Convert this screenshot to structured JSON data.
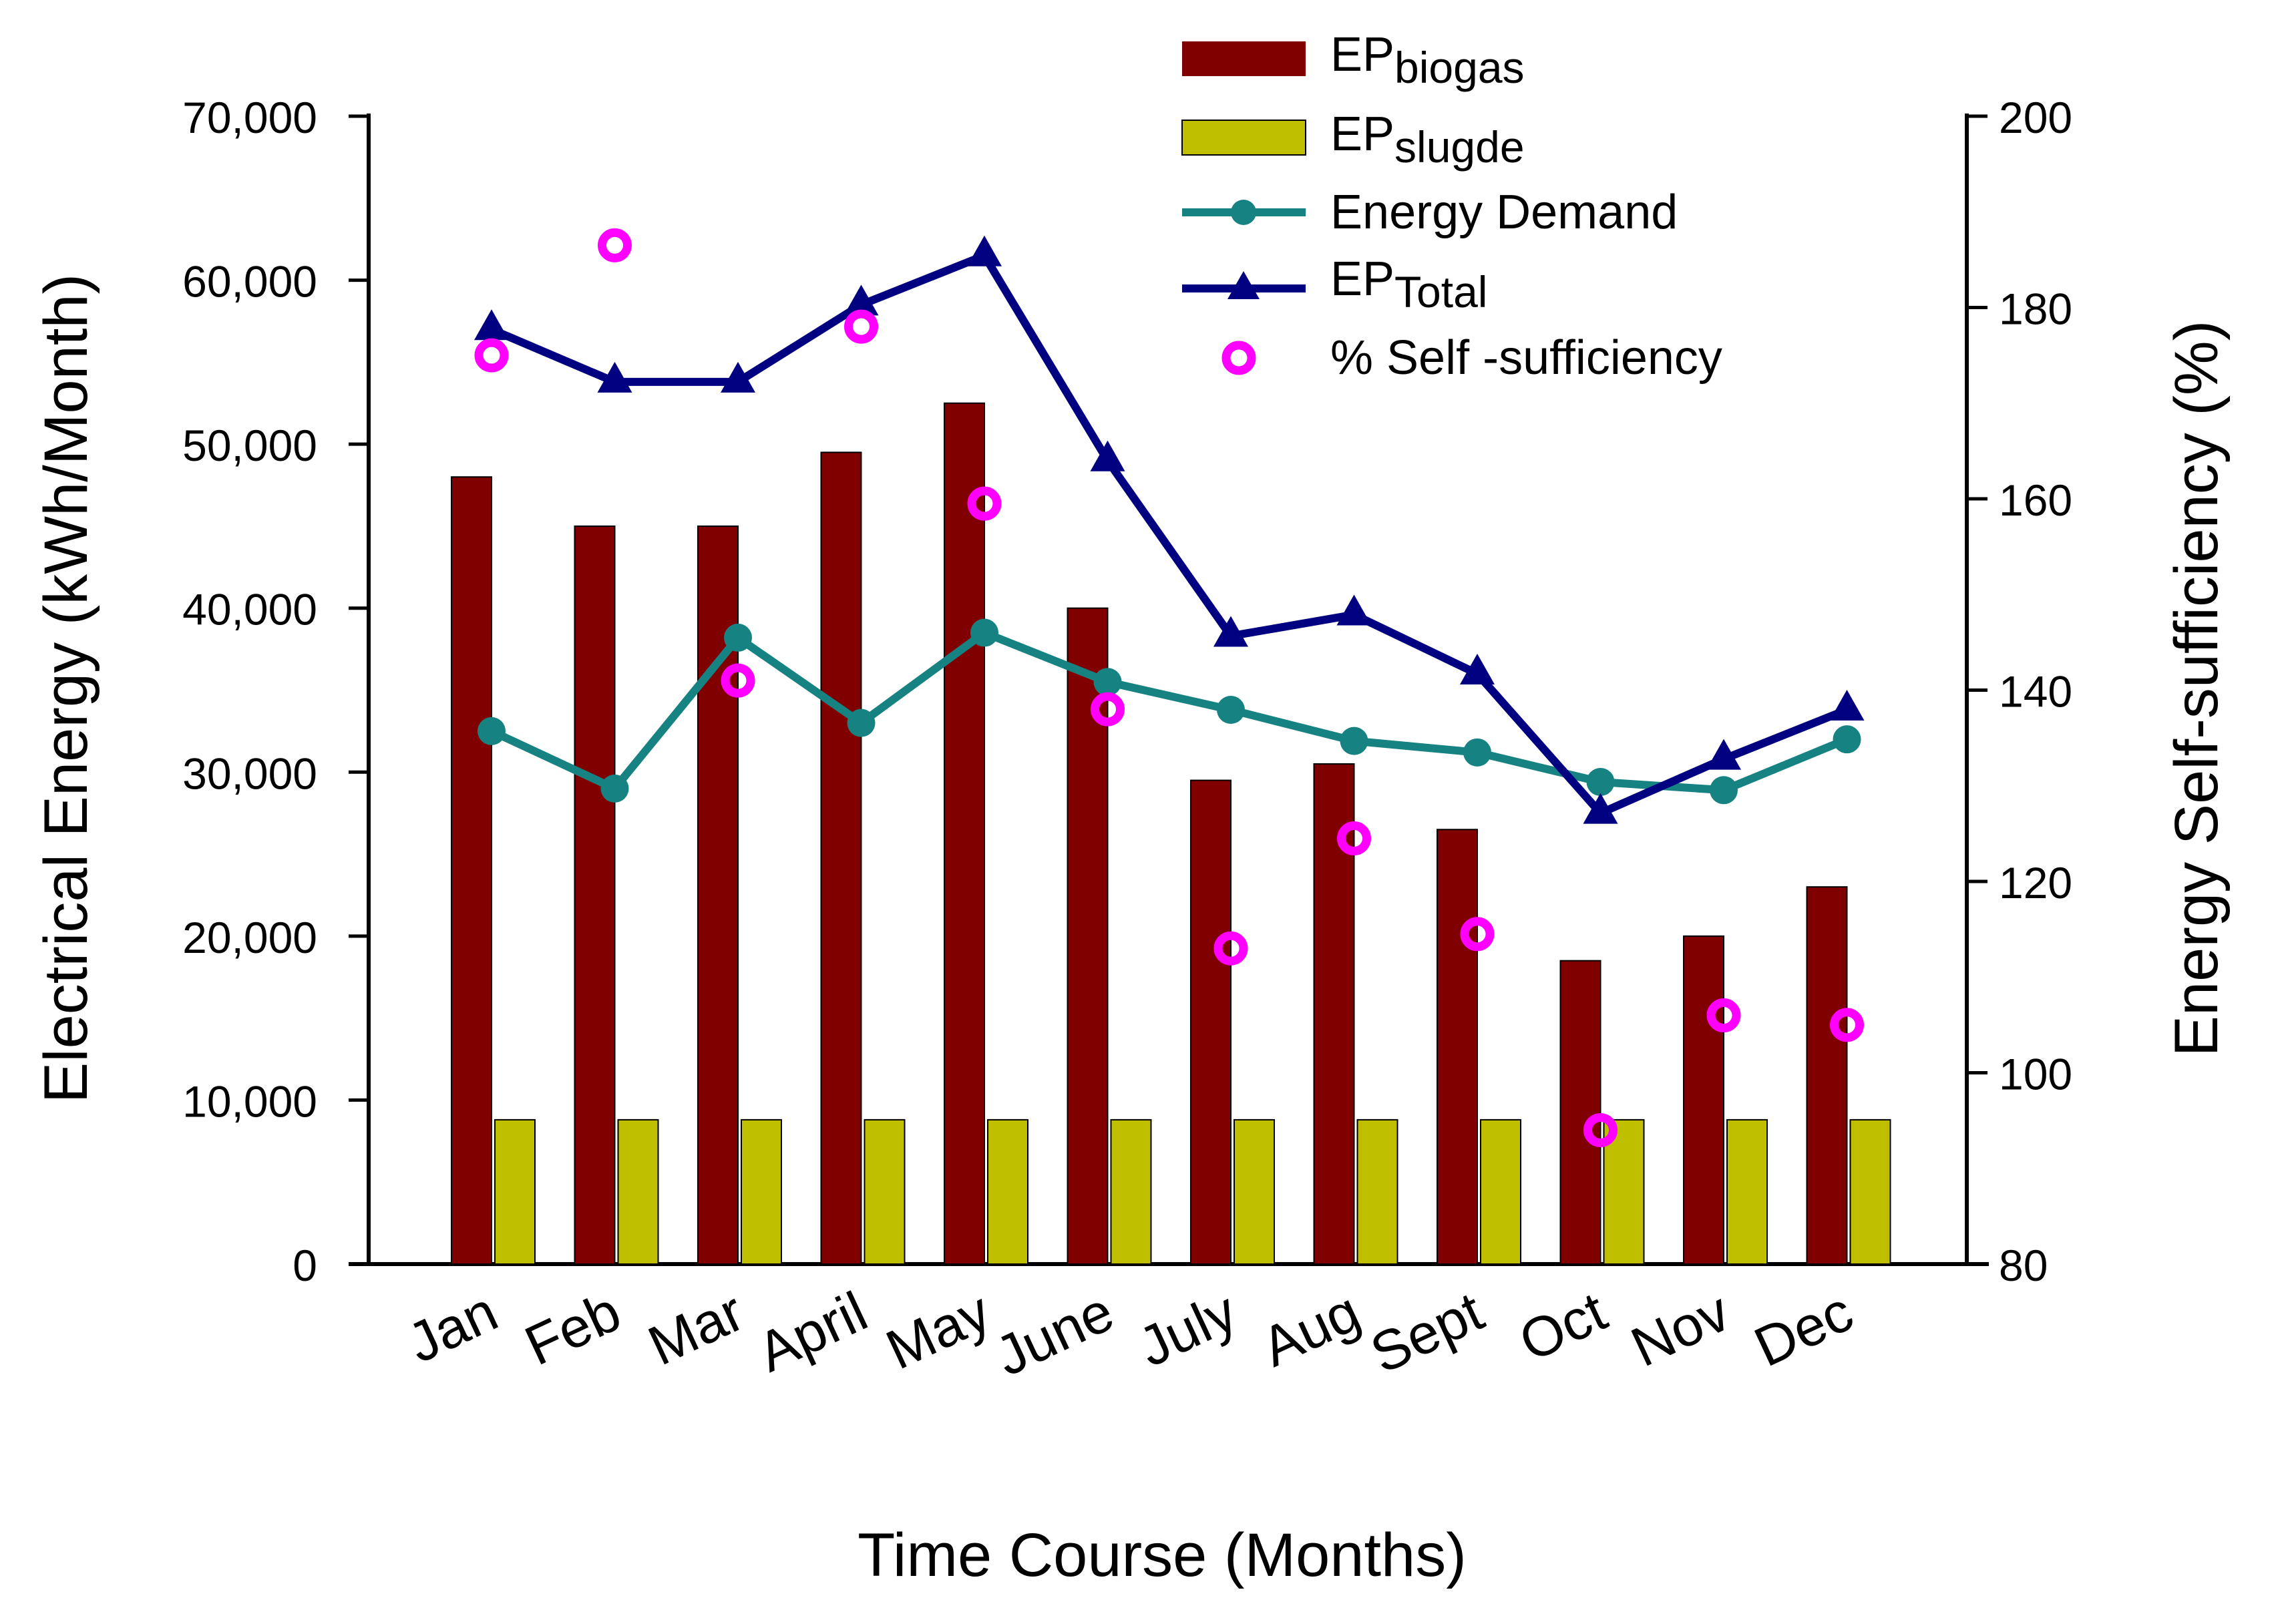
{
  "chart_data": {
    "type": "bar",
    "title": "",
    "xlabel": "Time Course (Months)",
    "ylabel": "Electrical Energy (kWh/Month)",
    "y2label": "Energy Self-sufficiency (%)",
    "ylim": [
      0,
      70000
    ],
    "y2lim": [
      80,
      200
    ],
    "yticks": [
      "0",
      "10,000",
      "20,000",
      "30,000",
      "40,000",
      "50,000",
      "60,000",
      "70,000"
    ],
    "y2ticks": [
      "80",
      "100",
      "120",
      "140",
      "160",
      "180",
      "200"
    ],
    "categories": [
      "Jan",
      "Feb",
      "Mar",
      "April",
      "May",
      "June",
      "July",
      "Aug",
      "Sept",
      "Oct",
      "Nov",
      "Dec"
    ],
    "series": [
      {
        "name": "EPbiogas",
        "label": "EP",
        "label_sub": "biogas",
        "kind": "bar",
        "color": "#800000",
        "values": [
          48000,
          45000,
          45000,
          49500,
          52500,
          40000,
          29500,
          30500,
          26500,
          18500,
          20000,
          23000
        ]
      },
      {
        "name": "EPslugde",
        "label": "EP",
        "label_sub": "slugde",
        "kind": "bar",
        "color": "#bfbf00",
        "values": [
          8800,
          8800,
          8800,
          8800,
          8800,
          8800,
          8800,
          8800,
          8800,
          8800,
          8800,
          8800
        ]
      },
      {
        "name": "Energy Demand",
        "label": "Energy Demand",
        "kind": "line",
        "marker": "circle",
        "color": "#168282",
        "values": [
          32500,
          29000,
          38200,
          33000,
          38500,
          35500,
          33800,
          31900,
          31200,
          29400,
          28900,
          32000
        ]
      },
      {
        "name": "EPTotal",
        "label": "EP",
        "label_sub": "Total",
        "kind": "line",
        "marker": "triangle",
        "color": "#000080",
        "values": [
          57000,
          53800,
          53800,
          58500,
          61500,
          49000,
          38300,
          39600,
          36000,
          27500,
          30800,
          33800
        ]
      },
      {
        "name": "% Self -sufficiency",
        "label": "% Self -sufficiency",
        "kind": "scatter",
        "axis": "right",
        "marker": "ring",
        "color": "#ff00ff",
        "values": [
          175,
          186.5,
          141,
          178,
          159.5,
          138,
          113,
          124.5,
          114.5,
          94,
          106,
          105
        ]
      }
    ],
    "legend_position": "top-right",
    "grid": false
  }
}
